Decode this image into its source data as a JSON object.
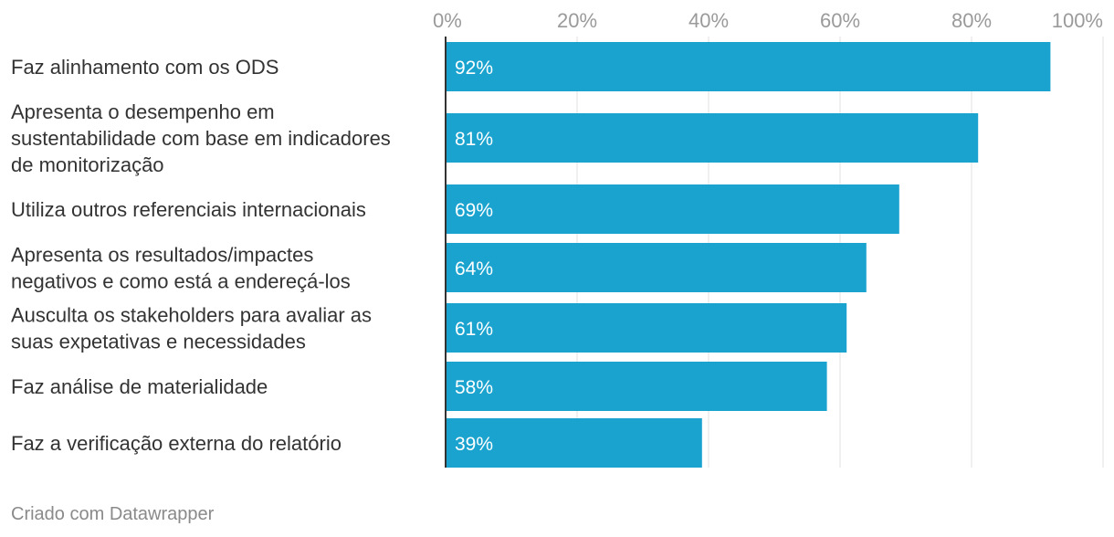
{
  "chart_data": {
    "type": "bar",
    "orientation": "horizontal",
    "categories": [
      [
        "Faz alinhamento com os ODS"
      ],
      [
        "Apresenta o desempenho em",
        "sustentabilidade com base em indicadores",
        "de monitorização"
      ],
      [
        "Utiliza outros referenciais internacionais"
      ],
      [
        "Apresenta os resultados/impactes",
        "negativos e como está a endereçá-los"
      ],
      [
        "Ausculta os stakeholders para avaliar as",
        "suas expetativas e necessidades"
      ],
      [
        "Faz análise de materialidade"
      ],
      [
        "Faz a verificação externa do relatório"
      ]
    ],
    "values": [
      92,
      81,
      69,
      64,
      61,
      58,
      39
    ],
    "value_labels": [
      "92%",
      "81%",
      "69%",
      "64%",
      "61%",
      "58%",
      "39%"
    ],
    "xlim": [
      0,
      100
    ],
    "xticks": [
      0,
      20,
      40,
      60,
      80,
      100
    ],
    "xtick_labels": [
      "0%",
      "20%",
      "40%",
      "60%",
      "80%",
      "100%"
    ],
    "grid": true,
    "bar_color": "#1aa3cf",
    "grid_color": "#e2e2e2",
    "axis_color": "#333333",
    "title": "",
    "xlabel": "",
    "ylabel": ""
  },
  "footer": {
    "credit": "Criado com Datawrapper"
  }
}
